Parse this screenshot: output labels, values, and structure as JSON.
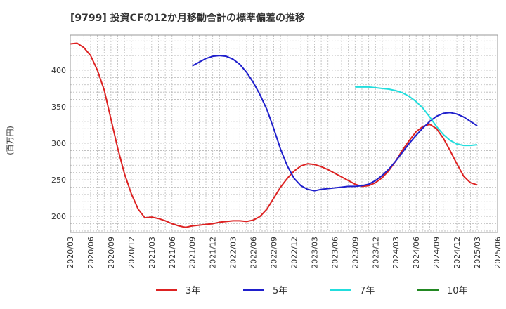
{
  "chart_data": {
    "type": "line",
    "title": "[9799]  投資CFの12か月移動合計の標準偏差の推移",
    "ylabel": "(百万円)",
    "xlabel": "",
    "ylim": [
      178,
      448
    ],
    "yticks": [
      200,
      250,
      300,
      350,
      400
    ],
    "grid": true,
    "legend_position": "bottom",
    "x_ticks": [
      "2020/03",
      "2020/06",
      "2020/09",
      "2020/12",
      "2021/03",
      "2021/06",
      "2021/09",
      "2021/12",
      "2022/03",
      "2022/06",
      "2022/09",
      "2022/12",
      "2023/03",
      "2023/06",
      "2023/09",
      "2023/12",
      "2024/03",
      "2024/06",
      "2024/09",
      "2024/12",
      "2025/03",
      "2025/06"
    ],
    "x_range": [
      "2020/03",
      "2025/06"
    ],
    "series": [
      {
        "name": "3年",
        "color": "#dd2222",
        "points": [
          [
            "2020/03",
            436
          ],
          [
            "2020/04",
            437
          ],
          [
            "2020/05",
            431
          ],
          [
            "2020/06",
            420
          ],
          [
            "2020/07",
            400
          ],
          [
            "2020/08",
            373
          ],
          [
            "2020/09",
            333
          ],
          [
            "2020/10",
            293
          ],
          [
            "2020/11",
            258
          ],
          [
            "2020/12",
            231
          ],
          [
            "2021/01",
            210
          ],
          [
            "2021/02",
            198
          ],
          [
            "2021/03",
            199
          ],
          [
            "2021/04",
            197
          ],
          [
            "2021/05",
            194
          ],
          [
            "2021/06",
            190
          ],
          [
            "2021/07",
            187
          ],
          [
            "2021/08",
            185
          ],
          [
            "2021/09",
            187
          ],
          [
            "2021/10",
            188
          ],
          [
            "2021/11",
            189
          ],
          [
            "2021/12",
            190
          ],
          [
            "2022/01",
            192
          ],
          [
            "2022/02",
            193
          ],
          [
            "2022/03",
            194
          ],
          [
            "2022/04",
            194
          ],
          [
            "2022/05",
            193
          ],
          [
            "2022/06",
            195
          ],
          [
            "2022/07",
            200
          ],
          [
            "2022/08",
            210
          ],
          [
            "2022/09",
            225
          ],
          [
            "2022/10",
            240
          ],
          [
            "2022/11",
            252
          ],
          [
            "2022/12",
            262
          ],
          [
            "2023/01",
            269
          ],
          [
            "2023/02",
            272
          ],
          [
            "2023/03",
            271
          ],
          [
            "2023/04",
            268
          ],
          [
            "2023/05",
            264
          ],
          [
            "2023/06",
            259
          ],
          [
            "2023/07",
            254
          ],
          [
            "2023/08",
            249
          ],
          [
            "2023/09",
            244
          ],
          [
            "2023/10",
            241
          ],
          [
            "2023/11",
            242
          ],
          [
            "2023/12",
            246
          ],
          [
            "2024/01",
            253
          ],
          [
            "2024/02",
            263
          ],
          [
            "2024/03",
            276
          ],
          [
            "2024/04",
            291
          ],
          [
            "2024/05",
            304
          ],
          [
            "2024/06",
            316
          ],
          [
            "2024/07",
            323
          ],
          [
            "2024/08",
            326
          ],
          [
            "2024/09",
            320
          ],
          [
            "2024/10",
            307
          ],
          [
            "2024/11",
            290
          ],
          [
            "2024/12",
            272
          ],
          [
            "2025/01",
            255
          ],
          [
            "2025/02",
            246
          ],
          [
            "2025/03",
            243
          ]
        ]
      },
      {
        "name": "5年",
        "color": "#1f1fcc",
        "points": [
          [
            "2021/09",
            406
          ],
          [
            "2021/10",
            411
          ],
          [
            "2021/11",
            416
          ],
          [
            "2021/12",
            419
          ],
          [
            "2022/01",
            420
          ],
          [
            "2022/02",
            419
          ],
          [
            "2022/03",
            415
          ],
          [
            "2022/04",
            408
          ],
          [
            "2022/05",
            397
          ],
          [
            "2022/06",
            383
          ],
          [
            "2022/07",
            366
          ],
          [
            "2022/08",
            346
          ],
          [
            "2022/09",
            320
          ],
          [
            "2022/10",
            292
          ],
          [
            "2022/11",
            269
          ],
          [
            "2022/12",
            252
          ],
          [
            "2023/01",
            242
          ],
          [
            "2023/02",
            237
          ],
          [
            "2023/03",
            235
          ],
          [
            "2023/04",
            237
          ],
          [
            "2023/05",
            238
          ],
          [
            "2023/06",
            239
          ],
          [
            "2023/07",
            240
          ],
          [
            "2023/08",
            241
          ],
          [
            "2023/09",
            241
          ],
          [
            "2023/10",
            242
          ],
          [
            "2023/11",
            244
          ],
          [
            "2023/12",
            249
          ],
          [
            "2024/01",
            256
          ],
          [
            "2024/02",
            265
          ],
          [
            "2024/03",
            276
          ],
          [
            "2024/04",
            288
          ],
          [
            "2024/05",
            300
          ],
          [
            "2024/06",
            311
          ],
          [
            "2024/07",
            321
          ],
          [
            "2024/08",
            330
          ],
          [
            "2024/09",
            337
          ],
          [
            "2024/10",
            341
          ],
          [
            "2024/11",
            342
          ],
          [
            "2024/12",
            340
          ],
          [
            "2025/01",
            336
          ],
          [
            "2025/02",
            330
          ],
          [
            "2025/03",
            324
          ]
        ]
      },
      {
        "name": "7年",
        "color": "#22dddd",
        "points": [
          [
            "2023/09",
            377
          ],
          [
            "2023/10",
            377
          ],
          [
            "2023/11",
            377
          ],
          [
            "2023/12",
            376
          ],
          [
            "2024/01",
            375
          ],
          [
            "2024/02",
            374
          ],
          [
            "2024/03",
            372
          ],
          [
            "2024/04",
            369
          ],
          [
            "2024/05",
            364
          ],
          [
            "2024/06",
            357
          ],
          [
            "2024/07",
            348
          ],
          [
            "2024/08",
            336
          ],
          [
            "2024/09",
            323
          ],
          [
            "2024/10",
            312
          ],
          [
            "2024/11",
            304
          ],
          [
            "2024/12",
            299
          ],
          [
            "2025/01",
            297
          ],
          [
            "2025/02",
            297
          ],
          [
            "2025/03",
            298
          ]
        ]
      },
      {
        "name": "10年",
        "color": "#228822",
        "points": []
      }
    ]
  }
}
